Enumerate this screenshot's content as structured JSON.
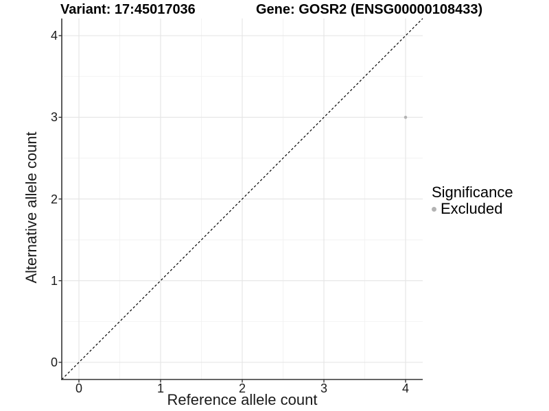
{
  "chart_data": {
    "type": "scatter",
    "titles": {
      "left": "Variant: 17:45017036",
      "right": "Gene: GOSR2 (ENSG00000108433)"
    },
    "xlabel": "Reference allele count",
    "ylabel": "Alternative allele count",
    "x_ticks": [
      0,
      1,
      2,
      3,
      4
    ],
    "y_ticks": [
      0,
      1,
      2,
      3,
      4
    ],
    "x_minor_ticks": [
      0.5,
      1.5,
      2.5,
      3.5
    ],
    "y_minor_ticks": [
      0.5,
      1.5,
      2.5,
      3.5
    ],
    "xlim": [
      -0.21,
      4.21
    ],
    "ylim": [
      -0.21,
      4.21
    ],
    "grid": "major+minor",
    "reference_line": {
      "kind": "identity y=x",
      "style": "dashed",
      "color": "#000000"
    },
    "series": [
      {
        "name": "Excluded",
        "color": "#b3b3b3",
        "points": [
          [
            4,
            3
          ]
        ]
      }
    ],
    "legend": {
      "title": "Significance",
      "position": "right",
      "items": [
        {
          "label": "Excluded",
          "color": "#b3b3b3"
        }
      ]
    },
    "colors": {
      "background": "#ffffff",
      "grid_major": "#e6e6e6",
      "grid_minor": "#f2f2f2",
      "axis_line": "#333333",
      "tick_mark": "#333333",
      "tick_text": "#1a1a1a"
    }
  }
}
